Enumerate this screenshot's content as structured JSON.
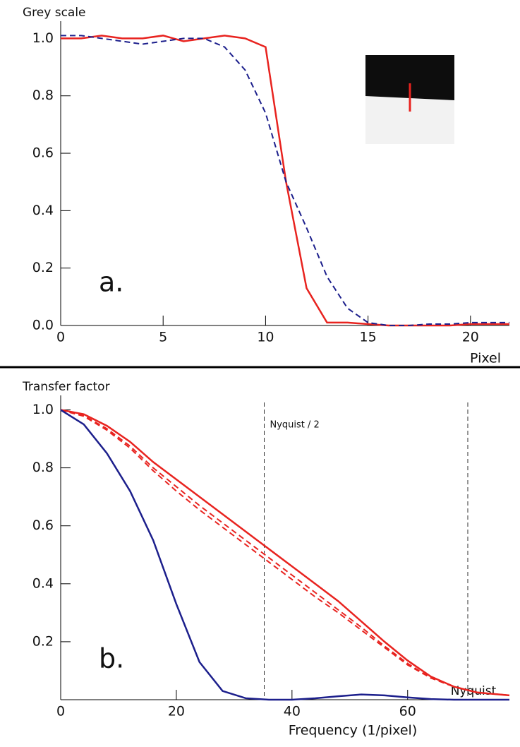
{
  "chart_data": [
    {
      "type": "line",
      "ylabel": "Grey scale",
      "xlabel": "Pixel",
      "panel_label": "a.",
      "x": [
        0,
        1,
        2,
        3,
        4,
        5,
        6,
        7,
        8,
        9,
        10,
        11,
        12,
        13,
        14,
        15,
        16,
        17,
        18,
        19,
        20,
        21,
        21.9
      ],
      "series": [
        {
          "color": "#e8231f",
          "style": "solid",
          "values": [
            1.0,
            1.0,
            1.01,
            1.0,
            1.0,
            1.01,
            0.99,
            1.0,
            1.01,
            1.0,
            0.97,
            0.5,
            0.13,
            0.01,
            0.01,
            0.005,
            0.0,
            0.0,
            0.0,
            0.0,
            0.005,
            0.005,
            0.005
          ]
        },
        {
          "color": "#1c1f8c",
          "style": "dashed",
          "values": [
            1.01,
            1.01,
            1.0,
            0.99,
            0.98,
            0.99,
            1.0,
            1.0,
            0.97,
            0.89,
            0.74,
            0.5,
            0.34,
            0.17,
            0.06,
            0.01,
            0.0,
            0.0,
            0.005,
            0.005,
            0.01,
            0.01,
            0.01
          ]
        }
      ],
      "xlim": [
        0,
        21.9
      ],
      "ylim": [
        0,
        1.06
      ],
      "xticks": [
        0,
        5,
        10,
        15,
        20
      ],
      "yticks": [
        {
          "value": 0,
          "label": "0.0"
        },
        0.2,
        0.4,
        0.6,
        0.8,
        {
          "value": 1,
          "label": "1.0"
        }
      ]
    },
    {
      "type": "line",
      "ylabel": "Transfer factor",
      "xlabel": "Frequency (1/pixel)",
      "panel_label": "b.",
      "x": [
        0,
        4,
        8,
        12,
        16,
        20,
        24,
        28,
        32,
        36,
        40,
        44,
        48,
        52,
        56,
        60,
        64,
        68,
        72,
        77.6
      ],
      "series": [
        {
          "color": "#e8231f",
          "style": "solid",
          "values": [
            1.0,
            0.985,
            0.945,
            0.89,
            0.82,
            0.76,
            0.7,
            0.64,
            0.58,
            0.52,
            0.46,
            0.4,
            0.34,
            0.27,
            0.2,
            0.135,
            0.08,
            0.045,
            0.025,
            0.015
          ]
        },
        {
          "color": "#e8231f",
          "style": "dashed",
          "values": [
            1.0,
            0.98,
            0.935,
            0.875,
            0.8,
            0.735,
            0.67,
            0.61,
            0.55,
            0.49,
            0.43,
            0.37,
            0.31,
            0.25,
            0.185,
            0.125,
            0.075,
            0.045,
            0.025,
            0.015
          ]
        },
        {
          "color": "#e8231f",
          "style": "dashed",
          "values": [
            1.0,
            0.978,
            0.93,
            0.868,
            0.79,
            0.72,
            0.655,
            0.595,
            0.535,
            0.475,
            0.415,
            0.355,
            0.3,
            0.24,
            0.18,
            0.12,
            0.075,
            0.045,
            0.025,
            0.015
          ]
        },
        {
          "color": "#1c1f8c",
          "style": "solid",
          "values": [
            1.0,
            0.95,
            0.85,
            0.72,
            0.55,
            0.33,
            0.13,
            0.03,
            0.005,
            0.0,
            0.0,
            0.005,
            0.012,
            0.018,
            0.015,
            0.008,
            0.002,
            0.0,
            0.0,
            0.0
          ]
        }
      ],
      "annotations": [
        {
          "text": "Nyquist / 2",
          "x": 35.2
        },
        {
          "text": "Nyquist",
          "x": 70.4
        }
      ],
      "xlim": [
        0,
        77.6
      ],
      "ylim": [
        0,
        1.05
      ],
      "xticks": [
        0,
        20,
        40,
        60
      ],
      "yticks": [
        0.2,
        0.4,
        0.6,
        0.8,
        {
          "value": 1,
          "label": "1.0"
        }
      ]
    }
  ]
}
